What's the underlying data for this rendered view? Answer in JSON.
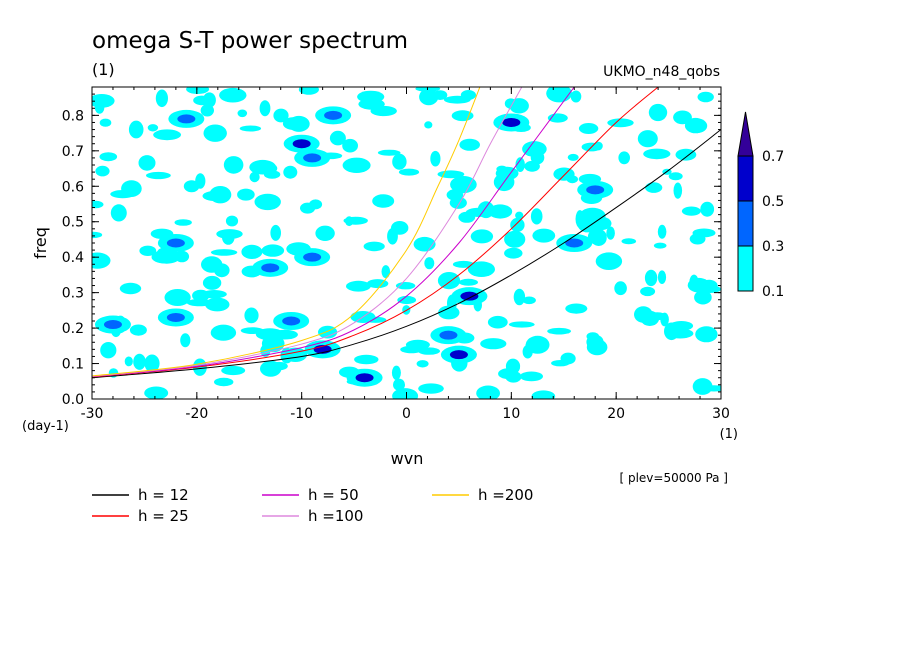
{
  "chart_data": {
    "type": "heatmap",
    "title": "omega S-T power spectrum",
    "subtitle": "(1)",
    "model_label": "UKMO_n48_qobs",
    "xlabel": "wvn",
    "x_unit": "(1)",
    "ylabel": "freq",
    "y_unit": "(day-1)",
    "annotation": "[ plev=50000 Pa ]",
    "xlim": [
      -30,
      30
    ],
    "ylim": [
      0,
      0.88
    ],
    "x_ticks": [
      -30,
      -20,
      -10,
      0,
      10,
      20,
      30
    ],
    "y_ticks": [
      0.0,
      0.1,
      0.2,
      0.3,
      0.4,
      0.5,
      0.6,
      0.7,
      0.8
    ],
    "colorbar": {
      "levels": [
        0.1,
        0.3,
        0.5,
        0.7
      ],
      "colors": [
        "#00ffff",
        "#0066ff",
        "#0000cc",
        "#330099"
      ],
      "extend": "max"
    },
    "series": [
      {
        "name": "h = 12",
        "color": "#000000",
        "x": [
          -30,
          -20,
          -10,
          -5,
          0,
          5,
          10,
          15,
          20,
          25,
          30
        ],
        "y": [
          0.06,
          0.085,
          0.12,
          0.155,
          0.205,
          0.27,
          0.35,
          0.44,
          0.54,
          0.645,
          0.76
        ]
      },
      {
        "name": "h = 25",
        "color": "#ff0000",
        "x": [
          -30,
          -20,
          -10,
          -5,
          0,
          5,
          10,
          15,
          20,
          24
        ],
        "y": [
          0.062,
          0.09,
          0.135,
          0.18,
          0.25,
          0.35,
          0.48,
          0.63,
          0.78,
          0.88
        ]
      },
      {
        "name": "h = 50",
        "color": "#cc00cc",
        "x": [
          -30,
          -20,
          -10,
          -5,
          0,
          5,
          10,
          16
        ],
        "y": [
          0.063,
          0.092,
          0.145,
          0.195,
          0.29,
          0.44,
          0.64,
          0.88
        ]
      },
      {
        "name": "h =100",
        "color": "#dd88dd",
        "x": [
          -30,
          -20,
          -10,
          -5,
          0,
          5,
          8,
          11
        ],
        "y": [
          0.064,
          0.095,
          0.155,
          0.215,
          0.34,
          0.55,
          0.72,
          0.88
        ]
      },
      {
        "name": "h =200",
        "color": "#ffcc00",
        "x": [
          -30,
          -20,
          -10,
          -5,
          0,
          3,
          5,
          7
        ],
        "y": [
          0.065,
          0.098,
          0.165,
          0.24,
          0.42,
          0.6,
          0.73,
          0.88
        ]
      }
    ],
    "spectral_peaks": [
      {
        "x": -8,
        "y": 0.14,
        "level": 0.5
      },
      {
        "x": -4,
        "y": 0.06,
        "level": 0.5
      },
      {
        "x": 5,
        "y": 0.125,
        "level": 0.5
      },
      {
        "x": 6,
        "y": 0.29,
        "level": 0.5
      },
      {
        "x": 10,
        "y": 0.78,
        "level": 0.5
      },
      {
        "x": -10,
        "y": 0.72,
        "level": 0.5
      },
      {
        "x": 16,
        "y": 0.44,
        "level": 0.3
      },
      {
        "x": 18,
        "y": 0.59,
        "level": 0.3
      },
      {
        "x": -22,
        "y": 0.44,
        "level": 0.3
      },
      {
        "x": -13,
        "y": 0.37,
        "level": 0.3
      },
      {
        "x": -9,
        "y": 0.68,
        "level": 0.3
      },
      {
        "x": -21,
        "y": 0.79,
        "level": 0.3
      },
      {
        "x": -28,
        "y": 0.21,
        "level": 0.3
      },
      {
        "x": 4,
        "y": 0.18,
        "level": 0.3
      },
      {
        "x": -9,
        "y": 0.4,
        "level": 0.3
      },
      {
        "x": -7,
        "y": 0.8,
        "level": 0.3
      },
      {
        "x": -22,
        "y": 0.23,
        "level": 0.3
      },
      {
        "x": -11,
        "y": 0.22,
        "level": 0.3
      }
    ]
  }
}
